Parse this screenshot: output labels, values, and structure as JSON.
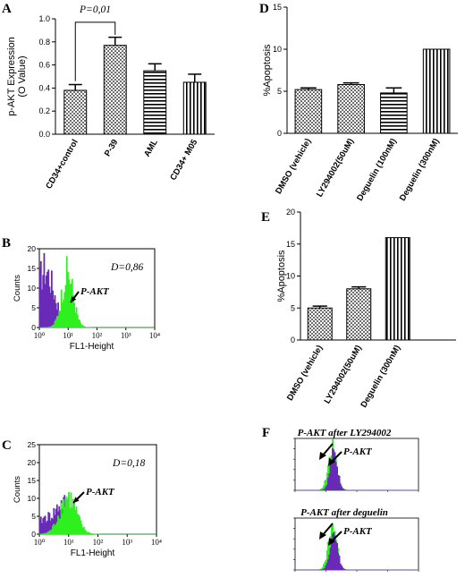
{
  "panels": {
    "A": {
      "letter": "A",
      "type": "bar",
      "ylabel": "p-AKT Expression\n(O Value)",
      "ylim": [
        0,
        1.0
      ],
      "yticks": [
        "0.0",
        "0.2",
        "0.4",
        "0.6",
        "0.8",
        "1.0"
      ],
      "categories": [
        "CD34+control",
        "P-39",
        "AML",
        "CD34+ M05"
      ],
      "values": [
        0.38,
        0.77,
        0.55,
        0.45
      ],
      "errors": [
        0.05,
        0.07,
        0.06,
        0.07
      ],
      "patterns": [
        "checker",
        "checker",
        "hstripe",
        "vstripe"
      ],
      "annotation": "P=0,01"
    },
    "B": {
      "letter": "B",
      "type": "histogram",
      "ylabel": "Counts",
      "xlabel": "FL1-Height",
      "ylim": [
        0,
        20
      ],
      "yticks": [
        "0",
        "5",
        "10",
        "15",
        "20"
      ],
      "xticks": [
        "10⁰",
        "10¹",
        "10²",
        "10³",
        "10⁴"
      ],
      "annotation_d": "D=0,86",
      "arrow_label": "P-AKT"
    },
    "C": {
      "letter": "C",
      "type": "histogram",
      "ylabel": "Counts",
      "xlabel": "FL1-Height",
      "ylim": [
        0,
        25
      ],
      "yticks": [
        "0",
        "5",
        "10",
        "15",
        "20",
        "25"
      ],
      "xticks": [
        "10⁰",
        "10¹",
        "10²",
        "10³",
        "10⁴"
      ],
      "annotation_d": "D=0,18",
      "arrow_label": "P-AKT"
    },
    "D": {
      "letter": "D",
      "type": "bar",
      "ylabel": "%Apoptosis",
      "ylim": [
        0,
        15
      ],
      "yticks": [
        "0",
        "5",
        "10",
        "15"
      ],
      "categories": [
        "DMSO (vehicle)",
        "LY294002(50uM)",
        "Deguelin (100nM)",
        "Deguelin (300nM)"
      ],
      "values": [
        5.2,
        5.8,
        4.8,
        10.0
      ],
      "errors": [
        0.2,
        0.2,
        0.6,
        0
      ],
      "patterns": [
        "checker",
        "checker",
        "hstripe",
        "vstripe"
      ]
    },
    "E": {
      "letter": "E",
      "type": "bar",
      "ylabel": "%Apoptosis",
      "ylim": [
        0,
        20
      ],
      "yticks": [
        "0",
        "5",
        "10",
        "15",
        "20"
      ],
      "categories": [
        "DMSO (vehicle)",
        "LY294002(50uM)",
        "Deguelin (300nM)"
      ],
      "values": [
        5.0,
        8.0,
        16.0
      ],
      "errors": [
        0.3,
        0.3,
        0
      ],
      "patterns": [
        "checker",
        "checker",
        "vstripe"
      ]
    },
    "F": {
      "letter": "F",
      "title_top": "P-AKT after LY294002",
      "title_bottom": "P-AKT after deguelin",
      "arrow_label": "P-AKT"
    }
  },
  "colors": {
    "purple": "#6a2ab8",
    "green": "#2ef01e",
    "bar_fill": "#6e6e6e",
    "axis": "#000000"
  }
}
